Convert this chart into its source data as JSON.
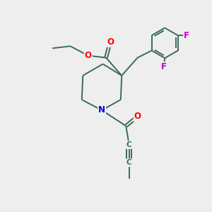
{
  "bg_color": "#eeeeee",
  "bond_color": "#3a6b5a",
  "bond_width": 1.4,
  "atom_colors": {
    "O": "#ff0000",
    "N": "#0000cc",
    "F": "#cc00cc",
    "C": "#3a6b5a"
  },
  "font_size_atom": 8.5,
  "font_size_C": 7.5,
  "xlim": [
    0,
    10
  ],
  "ylim": [
    0,
    10
  ]
}
